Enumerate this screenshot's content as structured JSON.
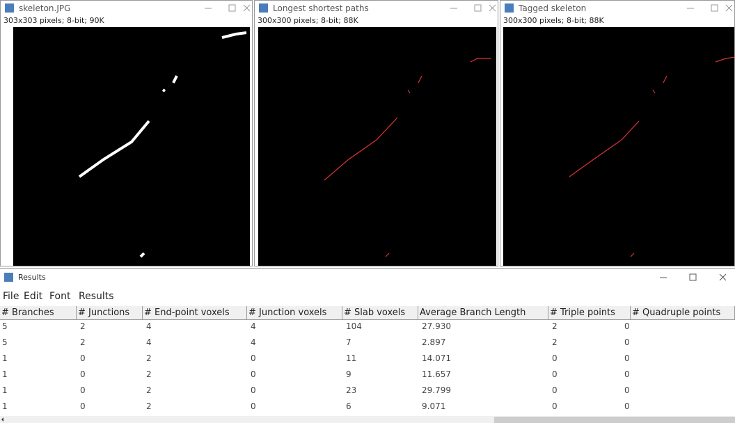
{
  "windows": [
    {
      "title": "skeleton.JPG",
      "info": "303x303 pixels; 8-bit; 90K"
    },
    {
      "title": "Longest shortest paths",
      "info": "300x300 pixels; 8-bit; 88K"
    },
    {
      "title": "Tagged skeleton",
      "info": "300x300 pixels; 8-bit; 88K"
    }
  ],
  "results": {
    "title": "Results",
    "menu": [
      "File",
      "Edit",
      "Font",
      "Results"
    ],
    "table": {
      "headers": [
        "# Branches",
        "# Junctions",
        "# End-point voxels",
        "# Junction voxels",
        "# Slab voxels",
        "Average Branch Length",
        "# Triple points",
        "# Quadruple points"
      ],
      "rows": [
        [
          "5",
          "2",
          "4",
          "4",
          "104",
          "27.930",
          "2",
          "0"
        ],
        [
          "5",
          "2",
          "4",
          "4",
          "7",
          "2.897",
          "2",
          "0"
        ],
        [
          "1",
          "0",
          "2",
          "0",
          "11",
          "14.071",
          "0",
          "0"
        ],
        [
          "1",
          "0",
          "2",
          "0",
          "9",
          "11.657",
          "0",
          "0"
        ],
        [
          "1",
          "0",
          "2",
          "0",
          "23",
          "29.799",
          "0",
          "0"
        ],
        [
          "1",
          "0",
          "2",
          "0",
          "6",
          "9.071",
          "0",
          "0"
        ]
      ]
    }
  }
}
